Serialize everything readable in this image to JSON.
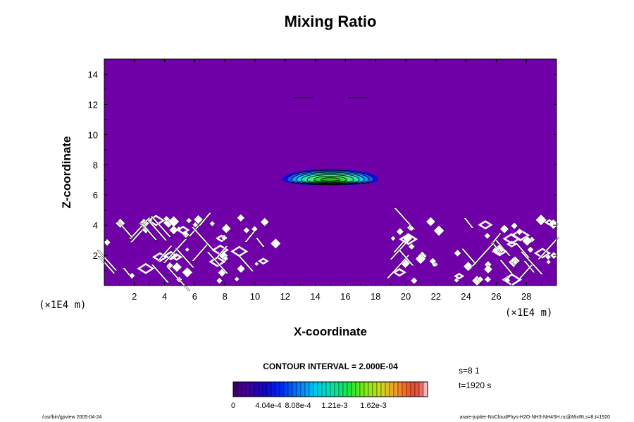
{
  "chart_data": {
    "type": "heatmap",
    "title": "Mixing Ratio",
    "xlabel": "X-coordinate",
    "ylabel": "Z-coordinate",
    "x_unit": "(×1E4 m)",
    "z_unit": "(×1E4 m)",
    "xlim": [
      0,
      30
    ],
    "ylim": [
      0,
      15
    ],
    "x_ticks": [
      2,
      4,
      6,
      8,
      10,
      12,
      14,
      16,
      18,
      20,
      22,
      24,
      26,
      28
    ],
    "y_ticks": [
      2,
      4,
      6,
      8,
      10,
      12,
      14
    ],
    "contour_interval": "CONTOUR INTERVAL = 2.000E-04",
    "colorbar": {
      "ticks": [
        "0",
        "4.04e-4",
        "8.08e-4",
        "1.21e-3",
        "1.62e-3"
      ]
    },
    "annotations": {
      "s": "s=8 1",
      "t": "t=1920 s"
    },
    "cloud": {
      "x_center": 15,
      "z_center": 7.0,
      "x_half_width": 3.2,
      "z_half_height": 0.65
    },
    "background_color": "#7000a8"
  },
  "footer": {
    "left": "/usr/bin/gpview 2005-04-24",
    "right": "arare-jupiter-NoCloudPhys-H2O-NH3-NH4SH.nc@MixRt,s=8,t=1920"
  }
}
